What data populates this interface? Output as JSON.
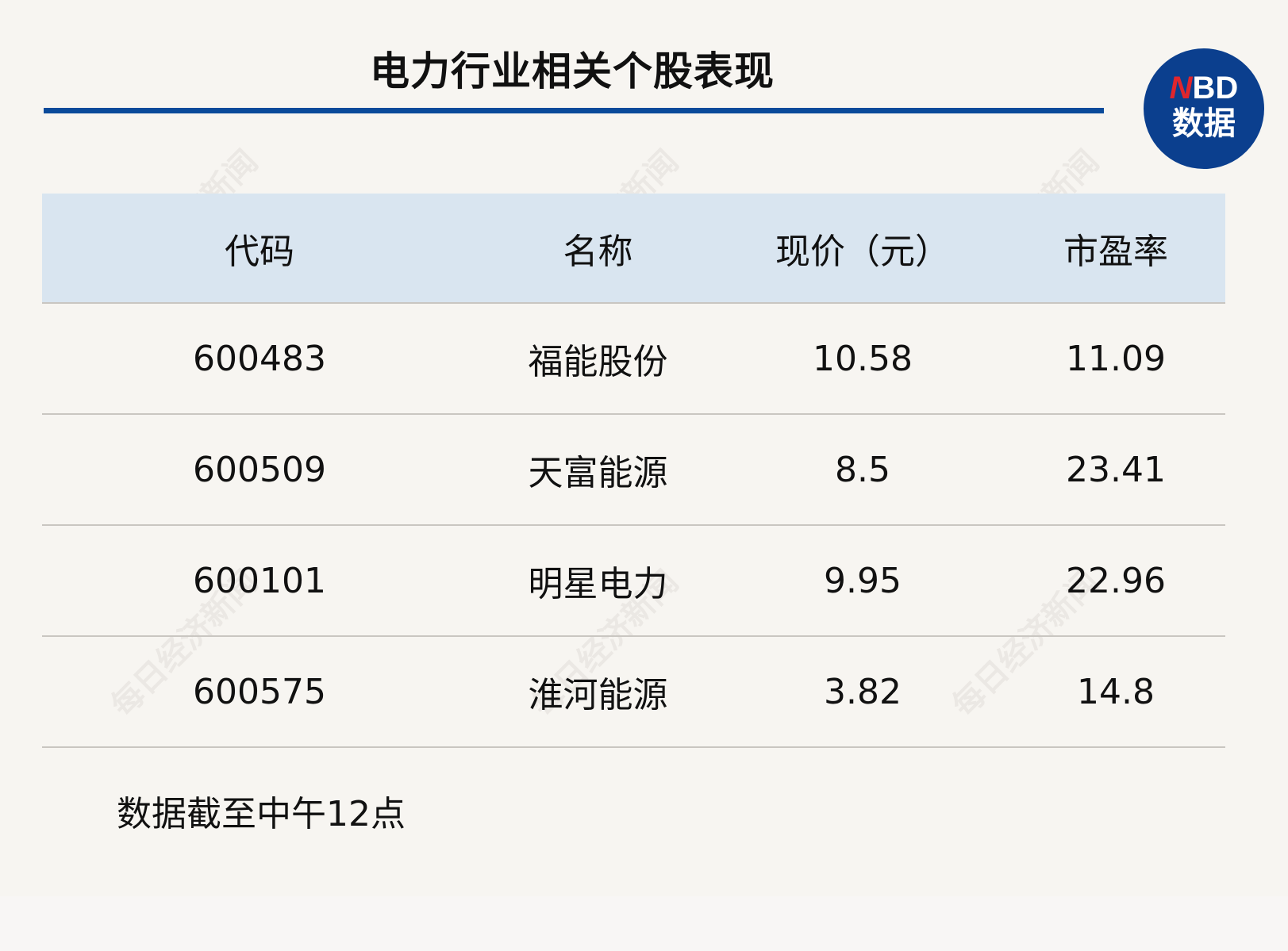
{
  "title": "电力行业相关个股表现",
  "logo": {
    "brand": "NBD",
    "sub": "数据",
    "colors": {
      "circle": "#0b3f8e",
      "n": "#e1262d"
    }
  },
  "watermark": "每日经济新闻",
  "table": {
    "headers": [
      "代码",
      "名称",
      "现价（元）",
      "市盈率"
    ],
    "rows": [
      [
        "600483",
        "福能股份",
        "10.58",
        "11.09"
      ],
      [
        "600509",
        "天富能源",
        "8.5",
        "23.41"
      ],
      [
        "600101",
        "明星电力",
        "9.95",
        "22.96"
      ],
      [
        "600575",
        "淮河能源",
        "3.82",
        "14.8"
      ]
    ]
  },
  "note": "数据截至中午12点",
  "colors": {
    "accent": "#0a4a9a",
    "header_bg": "#d9e5f0",
    "background": "#f7f5f1"
  }
}
